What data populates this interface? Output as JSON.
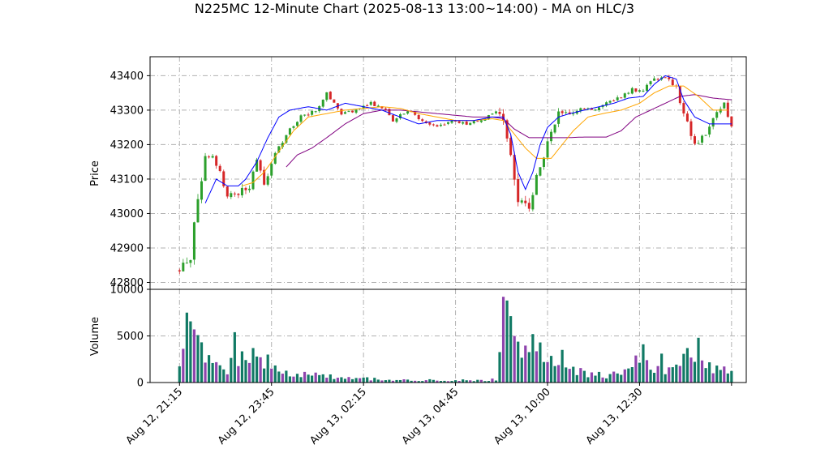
{
  "chart_data": {
    "type": "candlestick",
    "title": "N225MC 12-Minute Chart (2025-08-13 13:00~14:00) - MA on HLC/3",
    "ylabel": "Price",
    "volume_label": "Volume",
    "ylim": [
      42780,
      43455
    ],
    "yticks": [
      42800,
      42900,
      43000,
      43100,
      43200,
      43300,
      43400
    ],
    "volume_ylim": [
      0,
      10000
    ],
    "volume_yticks": [
      0,
      5000,
      10000
    ],
    "xticks": [
      "Aug 12, 21:15",
      "Aug 12, 23:45",
      "Aug 13, 02:15",
      "Aug 13, 04:45",
      "Aug 13, 10:00",
      "Aug 13, 12:30"
    ],
    "xlim": [
      -8,
      154
    ],
    "tick_index": [
      0,
      25,
      50,
      75,
      100,
      125
    ],
    "grid": true,
    "colors": {
      "up": "#2ca02c",
      "down": "#d62728",
      "ma_short": "#0000ff",
      "ma_mid": "#ffa500",
      "ma_long": "#800080",
      "vol_a": "#117a65",
      "vol_b": "#8e44ad"
    },
    "price_anchors": [
      [
        0,
        42835
      ],
      [
        3,
        42880
      ],
      [
        5,
        43050
      ],
      [
        7,
        43160
      ],
      [
        9,
        43160
      ],
      [
        11,
        43120
      ],
      [
        13,
        43050
      ],
      [
        16,
        43060
      ],
      [
        19,
        43080
      ],
      [
        21,
        43150
      ],
      [
        23,
        43080
      ],
      [
        26,
        43170
      ],
      [
        29,
        43230
      ],
      [
        33,
        43280
      ],
      [
        37,
        43300
      ],
      [
        40,
        43350
      ],
      [
        44,
        43290
      ],
      [
        48,
        43300
      ],
      [
        52,
        43320
      ],
      [
        56,
        43300
      ],
      [
        58,
        43270
      ],
      [
        62,
        43300
      ],
      [
        66,
        43270
      ],
      [
        70,
        43250
      ],
      [
        74,
        43270
      ],
      [
        78,
        43260
      ],
      [
        82,
        43270
      ],
      [
        86,
        43300
      ],
      [
        88,
        43260
      ],
      [
        90,
        43150
      ],
      [
        92,
        43030
      ],
      [
        95,
        43020
      ],
      [
        98,
        43140
      ],
      [
        100,
        43200
      ],
      [
        103,
        43300
      ],
      [
        106,
        43290
      ],
      [
        109,
        43310
      ],
      [
        112,
        43300
      ],
      [
        116,
        43320
      ],
      [
        120,
        43340
      ],
      [
        123,
        43360
      ],
      [
        126,
        43360
      ],
      [
        129,
        43390
      ],
      [
        132,
        43400
      ],
      [
        135,
        43370
      ],
      [
        137,
        43290
      ],
      [
        140,
        43200
      ],
      [
        143,
        43230
      ],
      [
        146,
        43290
      ],
      [
        148,
        43320
      ],
      [
        150,
        43250
      ]
    ],
    "volume_anchors": [
      [
        0,
        1500
      ],
      [
        2,
        3500
      ],
      [
        4,
        6000
      ],
      [
        5,
        4000
      ],
      [
        7,
        2500
      ],
      [
        10,
        2000
      ],
      [
        13,
        1200
      ],
      [
        15,
        2600
      ],
      [
        17,
        3800
      ],
      [
        19,
        2200
      ],
      [
        21,
        3000
      ],
      [
        23,
        2000
      ],
      [
        26,
        1500
      ],
      [
        30,
        1000
      ],
      [
        35,
        900
      ],
      [
        40,
        800
      ],
      [
        45,
        500
      ],
      [
        50,
        450
      ],
      [
        55,
        300
      ],
      [
        60,
        250
      ],
      [
        70,
        250
      ],
      [
        80,
        250
      ],
      [
        86,
        300
      ],
      [
        88,
        5000
      ],
      [
        90,
        8500
      ],
      [
        92,
        4500
      ],
      [
        94,
        3500
      ],
      [
        96,
        3600
      ],
      [
        98,
        3800
      ],
      [
        100,
        2500
      ],
      [
        104,
        2000
      ],
      [
        108,
        1200
      ],
      [
        112,
        900
      ],
      [
        116,
        800
      ],
      [
        120,
        900
      ],
      [
        124,
        1800
      ],
      [
        126,
        2500
      ],
      [
        128,
        1500
      ],
      [
        132,
        1300
      ],
      [
        135,
        2200
      ],
      [
        138,
        3000
      ],
      [
        141,
        1800
      ],
      [
        145,
        1500
      ],
      [
        150,
        1500
      ]
    ],
    "volume_spikes": [
      [
        2,
        7500
      ],
      [
        4,
        5700
      ],
      [
        15,
        5400
      ],
      [
        20,
        3700
      ],
      [
        24,
        3000
      ],
      [
        88,
        9200
      ],
      [
        89,
        8800
      ],
      [
        91,
        5000
      ],
      [
        96,
        5200
      ],
      [
        98,
        4300
      ],
      [
        104,
        3500
      ],
      [
        124,
        2900
      ],
      [
        126,
        4100
      ],
      [
        131,
        3100
      ],
      [
        138,
        3700
      ],
      [
        141,
        4800
      ]
    ],
    "ma_short_anchors": [
      [
        7,
        43030
      ],
      [
        10,
        43100
      ],
      [
        13,
        43080
      ],
      [
        16,
        43080
      ],
      [
        18,
        43100
      ],
      [
        21,
        43150
      ],
      [
        24,
        43220
      ],
      [
        27,
        43280
      ],
      [
        30,
        43300
      ],
      [
        35,
        43310
      ],
      [
        40,
        43300
      ],
      [
        45,
        43320
      ],
      [
        50,
        43310
      ],
      [
        55,
        43300
      ],
      [
        60,
        43280
      ],
      [
        65,
        43260
      ],
      [
        70,
        43270
      ],
      [
        75,
        43270
      ],
      [
        80,
        43270
      ],
      [
        85,
        43280
      ],
      [
        88,
        43280
      ],
      [
        90,
        43230
      ],
      [
        92,
        43120
      ],
      [
        94,
        43070
      ],
      [
        96,
        43120
      ],
      [
        98,
        43200
      ],
      [
        100,
        43250
      ],
      [
        103,
        43280
      ],
      [
        106,
        43290
      ],
      [
        110,
        43300
      ],
      [
        114,
        43310
      ],
      [
        118,
        43320
      ],
      [
        122,
        43335
      ],
      [
        126,
        43340
      ],
      [
        129,
        43375
      ],
      [
        132,
        43400
      ],
      [
        135,
        43390
      ],
      [
        137,
        43330
      ],
      [
        140,
        43280
      ],
      [
        144,
        43260
      ],
      [
        148,
        43260
      ],
      [
        150,
        43260
      ]
    ],
    "ma_mid_anchors": [
      [
        17,
        43080
      ],
      [
        20,
        43090
      ],
      [
        23,
        43120
      ],
      [
        27,
        43180
      ],
      [
        31,
        43240
      ],
      [
        35,
        43280
      ],
      [
        40,
        43290
      ],
      [
        45,
        43300
      ],
      [
        50,
        43305
      ],
      [
        55,
        43310
      ],
      [
        60,
        43305
      ],
      [
        65,
        43290
      ],
      [
        70,
        43280
      ],
      [
        75,
        43270
      ],
      [
        80,
        43270
      ],
      [
        85,
        43275
      ],
      [
        88,
        43270
      ],
      [
        91,
        43230
      ],
      [
        94,
        43190
      ],
      [
        97,
        43160
      ],
      [
        101,
        43160
      ],
      [
        104,
        43200
      ],
      [
        107,
        43240
      ],
      [
        111,
        43280
      ],
      [
        115,
        43290
      ],
      [
        120,
        43300
      ],
      [
        125,
        43320
      ],
      [
        129,
        43350
      ],
      [
        133,
        43370
      ],
      [
        137,
        43370
      ],
      [
        141,
        43340
      ],
      [
        145,
        43300
      ],
      [
        149,
        43300
      ]
    ],
    "ma_long_anchors": [
      [
        29,
        43135
      ],
      [
        32,
        43170
      ],
      [
        36,
        43190
      ],
      [
        40,
        43220
      ],
      [
        45,
        43260
      ],
      [
        50,
        43290
      ],
      [
        55,
        43300
      ],
      [
        60,
        43300
      ],
      [
        65,
        43295
      ],
      [
        70,
        43290
      ],
      [
        75,
        43285
      ],
      [
        80,
        43280
      ],
      [
        85,
        43280
      ],
      [
        88,
        43275
      ],
      [
        91,
        43245
      ],
      [
        95,
        43220
      ],
      [
        100,
        43220
      ],
      [
        105,
        43220
      ],
      [
        110,
        43222
      ],
      [
        116,
        43222
      ],
      [
        120,
        43240
      ],
      [
        124,
        43280
      ],
      [
        128,
        43300
      ],
      [
        132,
        43320
      ],
      [
        136,
        43340
      ],
      [
        140,
        43345
      ],
      [
        145,
        43335
      ],
      [
        150,
        43330
      ]
    ]
  }
}
